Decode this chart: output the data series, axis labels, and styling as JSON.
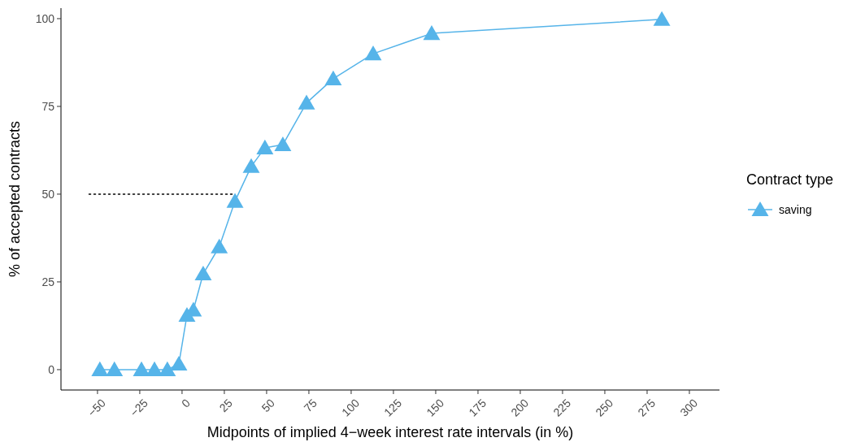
{
  "chart_data": {
    "type": "line",
    "xlabel": "Midpoints of implied 4−week interest rate intervals (in %)",
    "ylabel": "% of accepted contracts",
    "legend_title": "Contract type",
    "legend": "right",
    "marker": "triangle",
    "grid": false,
    "xlim": [
      -71.6,
      317.8
    ],
    "ylim": [
      -5.8,
      103
    ],
    "xticks": [
      {
        "value": -50,
        "label": "−50"
      },
      {
        "value": -25,
        "label": "−25"
      },
      0,
      25,
      50,
      75,
      100,
      125,
      150,
      175,
      200,
      225,
      250,
      275,
      300
    ],
    "yticks": [
      0,
      25,
      50,
      75,
      100
    ],
    "series": [
      {
        "name": "saving",
        "color": "#56b4e9",
        "line_style": "solid",
        "x": [
          -48.6,
          -40,
          -24,
          -16.3,
          -8.7,
          -1.9,
          2.9,
          6.7,
          12.5,
          22,
          31.3,
          40.9,
          49,
          59.6,
          73.6,
          89.4,
          113,
          147.6,
          283.7
        ],
        "values": [
          0,
          0,
          0,
          0,
          0,
          1.6,
          15.5,
          17,
          27.3,
          35,
          48,
          57.9,
          63.2,
          64.1,
          76,
          82.9,
          90,
          95.8,
          99.8
        ]
      },
      {
        "color": "#000000",
        "marker": "none",
        "line_style": "dotted",
        "x": [
          -55,
          30
        ],
        "values": [
          50,
          50
        ]
      }
    ]
  }
}
